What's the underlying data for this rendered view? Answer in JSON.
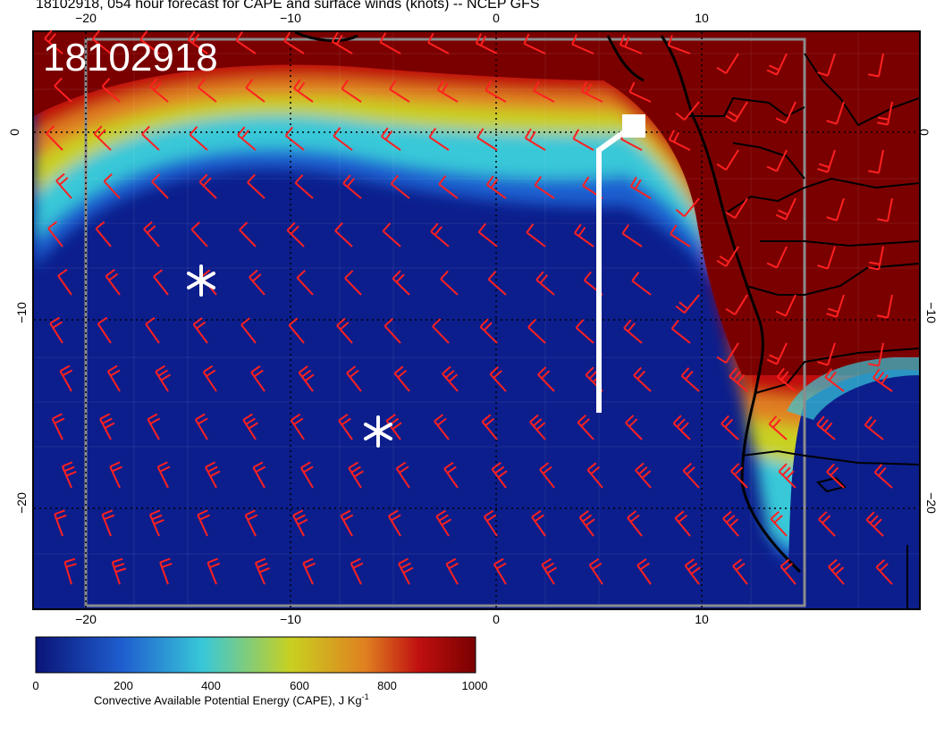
{
  "title": "18102918, 054 hour forecast for CAPE and surface winds (knots) -- NCEP GFS",
  "stamp": "18102918",
  "axes": {
    "lon_ticks_top": [
      "−20",
      "−10",
      "0",
      "10"
    ],
    "lon_ticks_bottom": [
      "−20",
      "−10",
      "0",
      "10"
    ],
    "lat_ticks_left": [
      "0",
      "−10",
      "−20"
    ],
    "lat_ticks_right": [
      "0",
      "−10",
      "−20"
    ]
  },
  "colorbar": {
    "ticks": [
      "0",
      "200",
      "400",
      "600",
      "800",
      "1000"
    ],
    "title": "Convective Available Potential Energy (CAPE), J Kg",
    "title_superscript": "-1",
    "colors": [
      "#0a1478",
      "#1f5fd0",
      "#38c8d8",
      "#c8d020",
      "#e08020",
      "#c01010",
      "#7a0000"
    ]
  },
  "colors": {
    "ocean_low": "#0c1e8c",
    "high_cape": "#7a0000",
    "wind_barb": "#ff2020",
    "track": "#ffffff",
    "coast": "#000000"
  },
  "markers": [
    {
      "type": "asterisk",
      "name": "storm-marker-1"
    },
    {
      "type": "asterisk",
      "name": "storm-marker-2"
    }
  ]
}
